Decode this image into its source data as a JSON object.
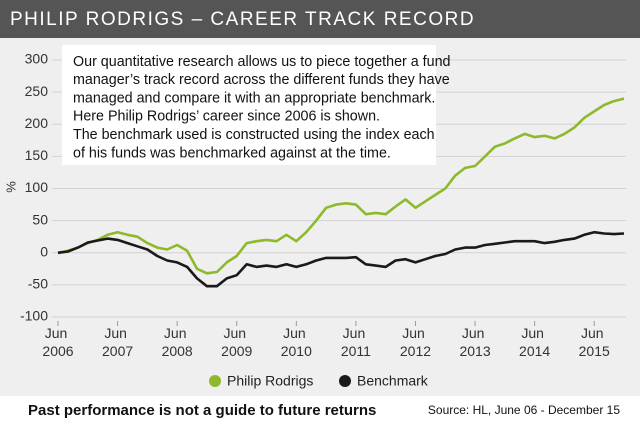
{
  "chart_data": {
    "type": "line",
    "title": "PHILIP RODRIGS – CAREER TRACK RECORD",
    "ylabel": "%",
    "annotation": [
      "Our quantitative research allows us to piece together a fund",
      "manager’s track record across the different funds they have",
      "managed and compare it with an appropriate benchmark.",
      "Here Philip Rodrigs’ career since 2006 is shown.",
      "The benchmark used is constructed using the index each",
      "of his funds was benchmarked against at the time."
    ],
    "footer": "Past performance is not a guide to future returns",
    "source": "Source: HL, June 06 - December 15",
    "x": [
      "2006-06",
      "2006-08",
      "2006-10",
      "2006-12",
      "2007-02",
      "2007-04",
      "2007-06",
      "2007-08",
      "2007-10",
      "2007-12",
      "2008-02",
      "2008-04",
      "2008-06",
      "2008-08",
      "2008-10",
      "2008-12",
      "2009-02",
      "2009-04",
      "2009-06",
      "2009-08",
      "2009-10",
      "2009-12",
      "2010-02",
      "2010-04",
      "2010-06",
      "2010-08",
      "2010-10",
      "2010-12",
      "2011-02",
      "2011-04",
      "2011-06",
      "2011-08",
      "2011-10",
      "2011-12",
      "2012-02",
      "2012-04",
      "2012-06",
      "2012-08",
      "2012-10",
      "2012-12",
      "2013-02",
      "2013-04",
      "2013-06",
      "2013-08",
      "2013-10",
      "2013-12",
      "2014-02",
      "2014-04",
      "2014-06",
      "2014-08",
      "2014-10",
      "2014-12",
      "2015-02",
      "2015-04",
      "2015-06",
      "2015-08",
      "2015-10",
      "2015-12"
    ],
    "series": [
      {
        "name": "Philip Rodrigs",
        "color": "#8db92b",
        "values": [
          0,
          3,
          8,
          15,
          20,
          28,
          32,
          28,
          25,
          15,
          8,
          5,
          12,
          3,
          -25,
          -32,
          -30,
          -15,
          -5,
          15,
          18,
          20,
          18,
          28,
          18,
          32,
          50,
          70,
          75,
          77,
          75,
          60,
          62,
          60,
          72,
          83,
          70,
          80,
          90,
          100,
          120,
          132,
          135,
          150,
          165,
          170,
          178,
          185,
          180,
          182,
          178,
          185,
          195,
          210,
          220,
          230,
          236,
          240
        ]
      },
      {
        "name": "Benchmark",
        "color": "#1a1a1a",
        "values": [
          0,
          2,
          8,
          16,
          19,
          22,
          20,
          15,
          10,
          5,
          -5,
          -12,
          -15,
          -22,
          -40,
          -52,
          -52,
          -40,
          -35,
          -18,
          -22,
          -20,
          -22,
          -18,
          -22,
          -18,
          -12,
          -8,
          -8,
          -8,
          -7,
          -18,
          -20,
          -22,
          -12,
          -10,
          -15,
          -10,
          -5,
          -2,
          5,
          8,
          8,
          12,
          14,
          16,
          18,
          18,
          18,
          15,
          17,
          20,
          22,
          28,
          32,
          30,
          29,
          30
        ]
      }
    ],
    "xlim": [
      "2006-06",
      "2015-12"
    ],
    "xticks": [
      {
        "value": "2006-06",
        "label": "Jun 2006"
      },
      {
        "value": "2007-06",
        "label": "Jun 2007"
      },
      {
        "value": "2008-06",
        "label": "Jun 2008"
      },
      {
        "value": "2009-06",
        "label": "Jun 2009"
      },
      {
        "value": "2010-06",
        "label": "Jun 2010"
      },
      {
        "value": "2011-06",
        "label": "Jun 2011"
      },
      {
        "value": "2012-06",
        "label": "Jun 2012"
      },
      {
        "value": "2013-06",
        "label": "Jun 2013"
      },
      {
        "value": "2014-06",
        "label": "Jun 2014"
      },
      {
        "value": "2015-06",
        "label": "Jun 2015"
      }
    ],
    "ylim": [
      -100,
      300
    ],
    "yticks": [
      -100,
      -50,
      0,
      50,
      100,
      150,
      200,
      250,
      300
    ],
    "grid": true
  }
}
